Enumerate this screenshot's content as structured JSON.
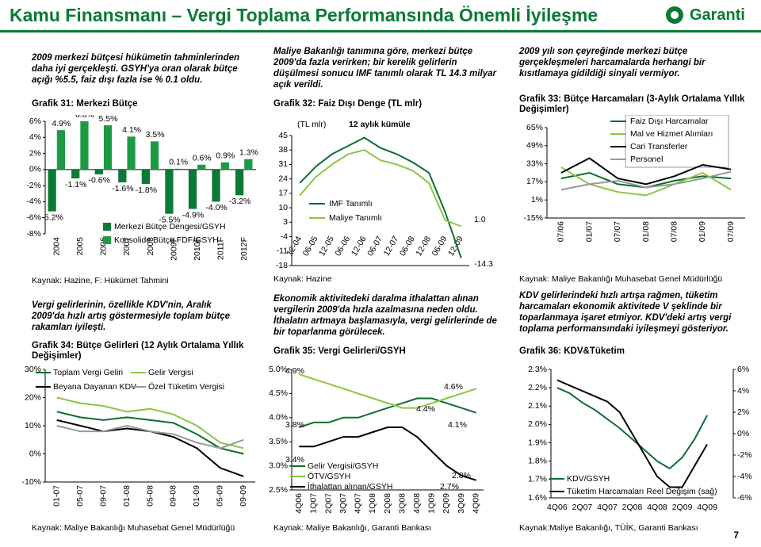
{
  "header": {
    "title": "Kamu Finansmanı – Vergi Toplama Performansında Önemli İyileşme",
    "logo": "Garanti"
  },
  "texts": {
    "top_left": "2009 merkezi bütçesi hükümetin tahminlerinden daha iyi gerçekleşti. GSYH'ya oran olarak bütçe açığı %5.5, faiz dışı fazla ise % 0.1 oldu.",
    "top_middle": "Maliye Bakanlığı tanımına göre, merkezi bütçe 2009'da fazla verirken; bir kerelik gelirlerin düşülmesi sonucu IMF tanımlı olarak TL 14.3 milyar açık verildi.",
    "top_right": "2009 yılı son çeyreğinde merkezi bütçe gerçekleşmeleri harcamalarda herhangi bir kısıtlamaya gidildiği sinyali vermiyor.",
    "mid_left": "Vergi gelirlerinin, özellikle KDV'nin, Aralık 2009'da hızlı artış göstermesiyle toplam bütçe rakamları iyileşti.",
    "mid_middle": "Ekonomik aktivitedeki daralma ithalattan alınan vergilerin 2009'da hızla azalmasına neden oldu. İthalatın artmaya başlamasıyla, vergi gelirlerinde de bir toparlanma görülecek.",
    "mid_right": "KDV gelirlerindeki hızlı artışa rağmen, tüketim harcamaları ekonomik aktivitede V şeklinde bir toparlanmaya işaret etmiyor. KDV'deki artış vergi toplama performansındaki iyileşmeyi gösteriyor."
  },
  "page_number": "7",
  "chart_data": [
    {
      "type": "bar",
      "title": "Grafik 31: Merkezi Bütçe",
      "source": "Kaynak: Hazine, F: Hükümet Tahmini",
      "categories": [
        "2004",
        "2005",
        "2006",
        "2007",
        "2008",
        "2009F",
        "2010F",
        "2011F",
        "2012F"
      ],
      "series": [
        {
          "name": "Merkezi Bütçe Dengesi/GSYH",
          "color": "#0b7a35",
          "values": [
            -5.2,
            -1.1,
            -0.6,
            -1.6,
            -1.8,
            -5.5,
            -4.9,
            -4.0,
            -3.2
          ],
          "value_labels": [
            "-5.2%",
            "-1.1%",
            "-0.6%",
            "-1.6%",
            "-1.8%",
            "-5.5%",
            "-4.9%",
            "-4.0%",
            "-3.2%"
          ]
        },
        {
          "name": "Konsolide Bütçe FDF/GSYH",
          "color": "#1e9a45",
          "values": [
            4.9,
            6.0,
            5.5,
            4.1,
            3.5,
            0.1,
            0.6,
            0.9,
            1.3
          ],
          "value_labels": [
            "4.9%",
            "6.0%",
            "5.5%",
            "4.1%",
            "3.5%",
            "0.1%",
            "0.6%",
            "0.9%",
            "1.3%"
          ]
        }
      ],
      "ylim": [
        -8,
        6
      ],
      "yticks": [
        {
          "value": 6,
          "label": "6%"
        },
        {
          "value": 4,
          "label": "4%"
        },
        {
          "value": 2,
          "label": "2%"
        },
        {
          "value": 0,
          "label": "0%"
        },
        {
          "value": -2,
          "label": "-2%"
        },
        {
          "value": -4,
          "label": "-4%"
        },
        {
          "value": -6,
          "label": "-6%"
        },
        {
          "value": -8,
          "label": "-8%"
        }
      ]
    },
    {
      "type": "line",
      "title": "Grafik 32: Faiz Dışı Denge (TL mlr)",
      "source": "Kaynak: Hazine",
      "y_label": "(TL mlr)",
      "subtitle": "12 aylık kümüle",
      "categories": [
        "12-04",
        "06-05",
        "12-05",
        "06-06",
        "12-06",
        "06-07",
        "12-07",
        "06-08",
        "12-08",
        "06-09",
        "12-09"
      ],
      "series": [
        {
          "name": "IMF Tanımlı",
          "color": "#0b6e30",
          "values": [
            22,
            30,
            36,
            40,
            44,
            39,
            36,
            32,
            27,
            8,
            -14.3
          ]
        },
        {
          "name": "Maliye Tanımlı",
          "color": "#8cc63f",
          "values": [
            16,
            25,
            31,
            36,
            38,
            33,
            31,
            28,
            22,
            4,
            1.0
          ]
        }
      ],
      "annotations": [
        "1.0",
        "-14.3"
      ],
      "ylim": [
        -18,
        45
      ],
      "yticks": [
        45,
        38,
        31,
        24,
        17,
        10,
        3,
        -4,
        -11,
        -18
      ]
    },
    {
      "type": "line",
      "title": "Grafik 33: Bütçe Harcamaları (3-Aylık Ortalama Yıllık Değişimler)",
      "source": "Kaynak: Maliye Bakanlığı Muhasebat Genel Müdürlüğü",
      "categories": [
        "07/06",
        "01/07",
        "07/07",
        "01/08",
        "07/08",
        "01/09",
        "07/09"
      ],
      "series": [
        {
          "name": "Faiz Dışı Harcamalar",
          "color": "#0b6e30",
          "values": [
            20,
            25,
            15,
            12,
            18,
            22,
            20
          ]
        },
        {
          "name": "Mal ve Hizmet Alımları",
          "color": "#8cc63f",
          "values": [
            30,
            15,
            8,
            5,
            15,
            25,
            10
          ]
        },
        {
          "name": "Cari Transferler",
          "color": "#000000",
          "values": [
            25,
            38,
            20,
            15,
            22,
            32,
            28
          ]
        },
        {
          "name": "Personel",
          "color": "#999999",
          "values": [
            10,
            15,
            18,
            12,
            15,
            20,
            26
          ]
        }
      ],
      "ylim": [
        -15,
        65
      ],
      "yticks": [
        {
          "value": 65,
          "label": "65%"
        },
        {
          "value": 49,
          "label": "49%"
        },
        {
          "value": 33,
          "label": "33%"
        },
        {
          "value": 17,
          "label": "17%"
        },
        {
          "value": 1,
          "label": "1%"
        },
        {
          "value": -15,
          "label": "-15%"
        }
      ]
    },
    {
      "type": "line",
      "title": "Grafik 34: Bütçe Gelirleri (12 Aylık Ortalama Yıllık Değişimler)",
      "source": "Kaynak: Maliye Bakanlığı Muhasebat Genel Müdürlüğü",
      "categories": [
        "01-07",
        "05-07",
        "09-07",
        "01-08",
        "05-08",
        "09-08",
        "01-09",
        "05-09",
        "09-09"
      ],
      "series": [
        {
          "name": "Toplam Vergi Geliri",
          "color": "#0b6e30",
          "values": [
            15,
            13,
            12,
            13,
            12,
            11,
            7,
            2,
            0
          ]
        },
        {
          "name": "Gelir Vergisi",
          "color": "#8cc63f",
          "values": [
            20,
            18,
            17,
            15,
            16,
            14,
            10,
            4,
            2
          ]
        },
        {
          "name": "Beyana Dayanan KDV",
          "color": "#000000",
          "values": [
            12,
            10,
            8,
            9,
            8,
            6,
            2,
            -5,
            -8
          ]
        },
        {
          "name": "Özel Tüketim Vergisi",
          "color": "#999999",
          "values": [
            10,
            8,
            8,
            10,
            8,
            7,
            4,
            2,
            5
          ]
        }
      ],
      "ylim": [
        -10,
        30
      ],
      "yticks": [
        {
          "value": 30,
          "label": "30%"
        },
        {
          "value": 20,
          "label": "20%"
        },
        {
          "value": 10,
          "label": "10%"
        },
        {
          "value": 0,
          "label": "0%"
        },
        {
          "value": -10,
          "label": "-10%"
        }
      ]
    },
    {
      "type": "line",
      "title": "Grafik 35: Vergi Gelirleri/GSYH",
      "source": "Kaynak: Maliye Bakanlığı, Garanti Bankası",
      "categories": [
        "4Q06",
        "1Q07",
        "2Q07",
        "3Q07",
        "4Q07",
        "1Q08",
        "2Q08",
        "3Q08",
        "4Q08",
        "1Q09",
        "2Q09",
        "3Q09",
        "4Q09"
      ],
      "series": [
        {
          "name": "Gelir Vergisi/GSYH",
          "color": "#0b6e30",
          "values": [
            3.8,
            3.9,
            3.9,
            4.0,
            4.0,
            4.1,
            4.2,
            4.3,
            4.4,
            4.4,
            4.3,
            4.2,
            4.1
          ]
        },
        {
          "name": "ÖTV/GSYH",
          "color": "#8cc63f",
          "values": [
            4.9,
            4.8,
            4.7,
            4.6,
            4.5,
            4.4,
            4.3,
            4.2,
            4.2,
            4.3,
            4.4,
            4.5,
            4.6
          ]
        },
        {
          "name": "İthalattan alınan/GSYH",
          "color": "#000000",
          "values": [
            3.4,
            3.4,
            3.5,
            3.6,
            3.6,
            3.7,
            3.8,
            3.8,
            3.6,
            3.3,
            3.0,
            2.8,
            2.7
          ]
        }
      ],
      "annotations": [
        "4.9%",
        "4.6%",
        "4.4%",
        "4.1%",
        "3.8%",
        "3.4%",
        "2.8%",
        "2.7%"
      ],
      "ylim": [
        2.5,
        5.0
      ],
      "yticks": [
        {
          "value": 5.0,
          "label": "5.0%"
        },
        {
          "value": 4.5,
          "label": "4.5%"
        },
        {
          "value": 4.0,
          "label": "4.0%"
        },
        {
          "value": 3.5,
          "label": "3.5%"
        },
        {
          "value": 3.0,
          "label": "3.0%"
        },
        {
          "value": 2.5,
          "label": "2.5%"
        }
      ]
    },
    {
      "type": "line",
      "title": "Grafik 36: KDV&Tüketim",
      "source": "Kaynak:Maliye Bakanlığı, TÜİK, Garanti Bankası",
      "categories": [
        "4Q06",
        null,
        "2Q07",
        null,
        "4Q07",
        null,
        "2Q08",
        null,
        "4Q08",
        null,
        "2Q09",
        null,
        "4Q09"
      ],
      "series": [
        {
          "name": "KDV/GSYH",
          "color": "#0b6e30",
          "values": [
            2.2,
            2.17,
            2.12,
            2.08,
            2.03,
            1.98,
            1.92,
            1.86,
            1.8,
            1.76,
            1.82,
            1.92,
            2.05
          ]
        },
        {
          "name": "Tüketim Harcamaları Reel Değişim (sağ)",
          "color": "#000000",
          "axis": "y2",
          "values": [
            5,
            4.5,
            4,
            3.5,
            3,
            2,
            0,
            -2,
            -4,
            -5,
            -5,
            -3,
            -1
          ]
        }
      ],
      "ylim": [
        1.6,
        2.3
      ],
      "yticks": [
        {
          "value": 2.3,
          "label": "2.3%"
        },
        {
          "value": 2.2,
          "label": "2.2%"
        },
        {
          "value": 2.1,
          "label": "2.1%"
        },
        {
          "value": 2.0,
          "label": "2.0%"
        },
        {
          "value": 1.9,
          "label": "1.9%"
        },
        {
          "value": 1.8,
          "label": "1.8%"
        },
        {
          "value": 1.7,
          "label": "1.7%"
        },
        {
          "value": 1.6,
          "label": "1.6%"
        }
      ],
      "y2lim": [
        -6,
        6
      ],
      "y2ticks": [
        {
          "value": 6,
          "label": "6%"
        },
        {
          "value": 4,
          "label": "4%"
        },
        {
          "value": 2,
          "label": "2%"
        },
        {
          "value": 0,
          "label": "0%"
        },
        {
          "value": -2,
          "label": "-2%"
        },
        {
          "value": -4,
          "label": "-4%"
        },
        {
          "value": -6,
          "label": "-6%"
        }
      ]
    }
  ]
}
